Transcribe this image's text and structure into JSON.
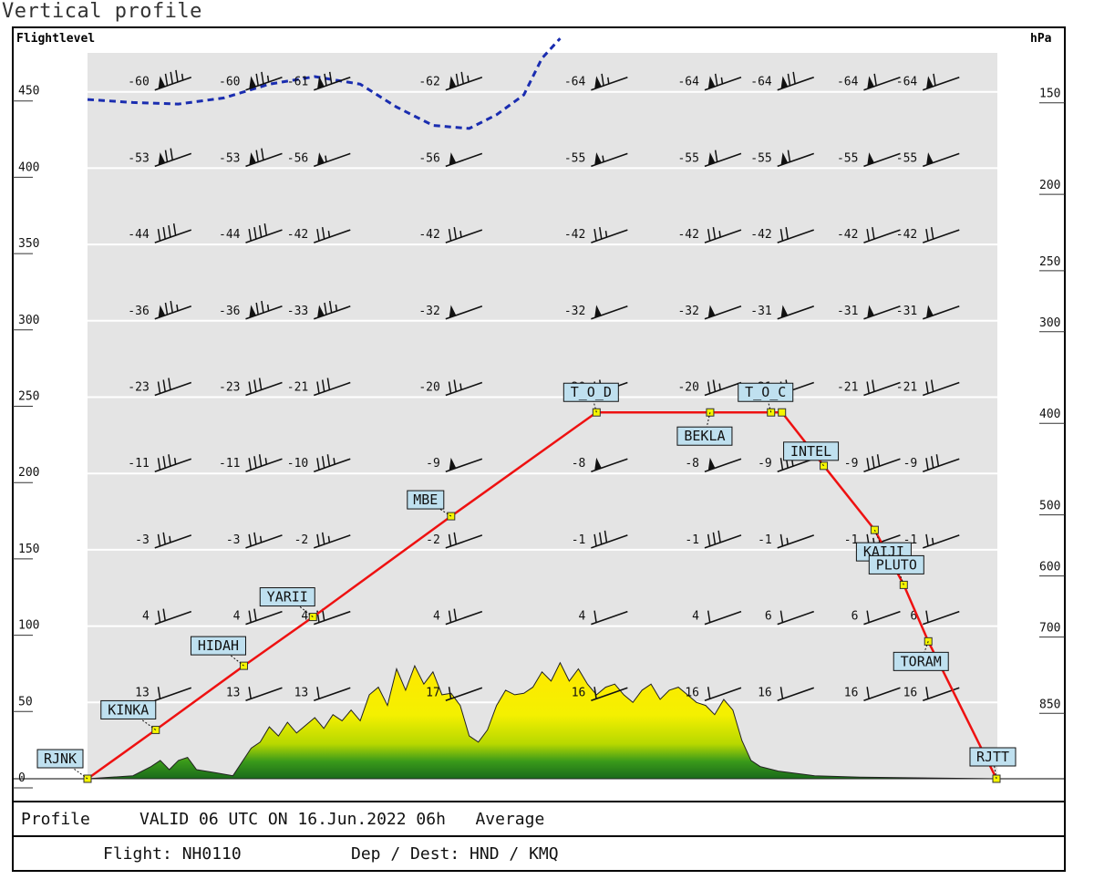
{
  "window_title": "Vertical profile",
  "chart_data": {
    "type": "line",
    "title": "Vertical profile",
    "left_axis_label": "Flightlevel",
    "right_axis_label": "hPa",
    "y_unit": "flight level (hundreds of ft)",
    "ylim": [
      0,
      470
    ],
    "left_ticks": [
      0,
      50,
      100,
      150,
      200,
      250,
      300,
      350,
      400,
      450
    ],
    "right_ticks": [
      {
        "label": "150",
        "fl": 450
      },
      {
        "label": "200",
        "fl": 390
      },
      {
        "label": "250",
        "fl": 340
      },
      {
        "label": "300",
        "fl": 300
      },
      {
        "label": "400",
        "fl": 240
      },
      {
        "label": "500",
        "fl": 180
      },
      {
        "label": "600",
        "fl": 140
      },
      {
        "label": "700",
        "fl": 100
      },
      {
        "label": "850",
        "fl": 50
      }
    ],
    "flight_levels": [
      450,
      400,
      350,
      300,
      250,
      200,
      150,
      100,
      50
    ],
    "columns": [
      0.07,
      0.17,
      0.245,
      0.39,
      0.55,
      0.675,
      0.755,
      0.85,
      0.915
    ],
    "temperatures": [
      [
        "-60",
        "-60",
        "-61",
        "-62",
        "-64",
        "-64",
        "-64",
        "-64",
        "-64"
      ],
      [
        "-53",
        "-53",
        "-56",
        "-56",
        "-55",
        "-55",
        "-55",
        "-55",
        "-55"
      ],
      [
        "-44",
        "-44",
        "-42",
        "-42",
        "-42",
        "-42",
        "-42",
        "-42",
        "-42"
      ],
      [
        "-36",
        "-36",
        "-33",
        "-32",
        "-32",
        "-32",
        "-31",
        "-31",
        "-31"
      ],
      [
        "-23",
        "-23",
        "-21",
        "-20",
        "-20",
        "-20",
        "-21",
        "-21",
        "-21"
      ],
      [
        "-11",
        "-11",
        "-10",
        "-9",
        "-8",
        "-8",
        "-9",
        "-9",
        "-9"
      ],
      [
        "-3",
        "-3",
        "-2",
        "-2",
        "-1",
        "-1",
        "-1",
        "-1",
        "-1"
      ],
      [
        "4",
        "4",
        "4",
        "4",
        "4",
        "4",
        "6",
        "6",
        "6"
      ],
      [
        "13",
        "13",
        "13",
        "17",
        "16",
        "16",
        "16",
        "16",
        "16"
      ]
    ],
    "wind_speeds_kt": [
      [
        85,
        75,
        70,
        75,
        65,
        65,
        70,
        60,
        60
      ],
      [
        70,
        70,
        55,
        50,
        55,
        60,
        60,
        50,
        50
      ],
      [
        40,
        40,
        25,
        25,
        25,
        25,
        20,
        20,
        20
      ],
      [
        75,
        75,
        75,
        50,
        50,
        50,
        50,
        50,
        50
      ],
      [
        30,
        30,
        30,
        25,
        25,
        25,
        20,
        20,
        20
      ],
      [
        35,
        35,
        35,
        50,
        50,
        50,
        30,
        30,
        30
      ],
      [
        25,
        25,
        25,
        20,
        30,
        30,
        15,
        15,
        15
      ],
      [
        20,
        20,
        20,
        20,
        10,
        10,
        10,
        10,
        10
      ],
      [
        10,
        10,
        10,
        10,
        10,
        10,
        10,
        10,
        10
      ]
    ],
    "route": [
      {
        "name": "RJNK",
        "x": 0.0,
        "fl": 0
      },
      {
        "name": "KINKA",
        "x": 0.075,
        "fl": 32
      },
      {
        "name": "HIDAH",
        "x": 0.172,
        "fl": 74
      },
      {
        "name": "YARII",
        "x": 0.248,
        "fl": 106
      },
      {
        "name": "MBE",
        "x": 0.4,
        "fl": 172
      },
      {
        "name": "T_O_D",
        "x": 0.56,
        "fl": 240
      },
      {
        "name": "BEKLA",
        "x": 0.685,
        "fl": 240
      },
      {
        "name": "T_O_C",
        "x": 0.752,
        "fl": 240
      },
      {
        "name": "",
        "x": 0.764,
        "fl": 240
      },
      {
        "name": "INTEL",
        "x": 0.81,
        "fl": 205
      },
      {
        "name": "KAIJI",
        "x": 0.866,
        "fl": 163
      },
      {
        "name": "PLUTO",
        "x": 0.898,
        "fl": 127
      },
      {
        "name": "TORAM",
        "x": 0.925,
        "fl": 90
      },
      {
        "name": "RJTT",
        "x": 1.0,
        "fl": 0
      }
    ],
    "tropopause": [
      [
        0.0,
        445
      ],
      [
        0.05,
        443
      ],
      [
        0.1,
        442
      ],
      [
        0.15,
        446
      ],
      [
        0.2,
        455
      ],
      [
        0.25,
        460
      ],
      [
        0.3,
        455
      ],
      [
        0.34,
        440
      ],
      [
        0.38,
        428
      ],
      [
        0.42,
        426
      ],
      [
        0.45,
        435
      ],
      [
        0.48,
        448
      ],
      [
        0.5,
        472
      ],
      [
        0.52,
        485
      ]
    ],
    "terrain": [
      [
        0.0,
        0
      ],
      [
        0.05,
        2
      ],
      [
        0.07,
        8
      ],
      [
        0.08,
        12
      ],
      [
        0.09,
        6
      ],
      [
        0.1,
        12
      ],
      [
        0.11,
        14
      ],
      [
        0.12,
        6
      ],
      [
        0.14,
        4
      ],
      [
        0.16,
        2
      ],
      [
        0.18,
        20
      ],
      [
        0.19,
        24
      ],
      [
        0.2,
        34
      ],
      [
        0.21,
        28
      ],
      [
        0.22,
        37
      ],
      [
        0.23,
        30
      ],
      [
        0.24,
        35
      ],
      [
        0.25,
        40
      ],
      [
        0.26,
        33
      ],
      [
        0.27,
        42
      ],
      [
        0.28,
        38
      ],
      [
        0.29,
        45
      ],
      [
        0.3,
        38
      ],
      [
        0.31,
        55
      ],
      [
        0.32,
        60
      ],
      [
        0.33,
        48
      ],
      [
        0.34,
        72
      ],
      [
        0.35,
        58
      ],
      [
        0.36,
        74
      ],
      [
        0.37,
        62
      ],
      [
        0.38,
        70
      ],
      [
        0.39,
        55
      ],
      [
        0.4,
        56
      ],
      [
        0.41,
        48
      ],
      [
        0.42,
        28
      ],
      [
        0.43,
        24
      ],
      [
        0.44,
        32
      ],
      [
        0.45,
        48
      ],
      [
        0.46,
        58
      ],
      [
        0.47,
        55
      ],
      [
        0.48,
        56
      ],
      [
        0.49,
        60
      ],
      [
        0.5,
        70
      ],
      [
        0.51,
        64
      ],
      [
        0.52,
        76
      ],
      [
        0.53,
        64
      ],
      [
        0.54,
        72
      ],
      [
        0.55,
        62
      ],
      [
        0.56,
        55
      ],
      [
        0.57,
        60
      ],
      [
        0.58,
        62
      ],
      [
        0.59,
        55
      ],
      [
        0.6,
        50
      ],
      [
        0.61,
        58
      ],
      [
        0.62,
        62
      ],
      [
        0.63,
        52
      ],
      [
        0.64,
        58
      ],
      [
        0.65,
        60
      ],
      [
        0.66,
        55
      ],
      [
        0.67,
        50
      ],
      [
        0.68,
        48
      ],
      [
        0.69,
        42
      ],
      [
        0.7,
        52
      ],
      [
        0.71,
        45
      ],
      [
        0.72,
        25
      ],
      [
        0.73,
        12
      ],
      [
        0.74,
        8
      ],
      [
        0.76,
        5
      ],
      [
        0.8,
        2
      ],
      [
        0.85,
        1
      ],
      [
        1.0,
        0
      ]
    ]
  },
  "footer": {
    "profile_label": "Profile",
    "valid_text": "VALID 06 UTC ON 16.Jun.2022 06h   Average",
    "flight_text": "Flight: NH0110",
    "depdest_text": "Dep / Dest: HND / KMQ"
  },
  "colors": {
    "plot_bg": "#e4e4e4",
    "route": "#ee1111",
    "waypoint_fill": "#f6f600",
    "waypoint_label_bg": "#bfe0ef",
    "tropopause": "#1a2db0",
    "terrain_top": "#f2e600",
    "terrain_bottom": "#1e6e1e"
  }
}
